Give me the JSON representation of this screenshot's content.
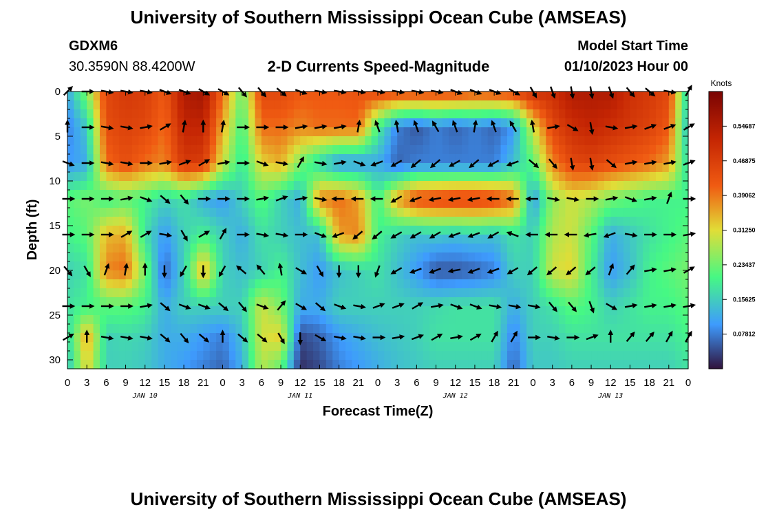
{
  "header": {
    "title": "University of Southern Mississippi Ocean Cube (AMSEAS)",
    "station": "GDXM6",
    "coords": "30.3590N  88.4200W",
    "plot_title": "2-D Currents Speed-Magnitude",
    "model_start_label": "Model Start Time",
    "model_start_value": "01/10/2023 Hour 00"
  },
  "footer": {
    "title": "University of Southern Mississippi Ocean Cube (AMSEAS)"
  },
  "colors": [
    "#30123b",
    "#3e9bfe",
    "#46f884",
    "#e1dd37",
    "#f05b12",
    "#c42503",
    "#7a0403"
  ],
  "chart_data": {
    "type": "heatmap",
    "title": "2-D Currents Speed-Magnitude",
    "xlabel": "Forecast Time(Z)",
    "ylabel": "Depth (ft)",
    "x_hours": [
      0,
      96
    ],
    "x_tick_labels": [
      "0",
      "3",
      "6",
      "9",
      "12",
      "15",
      "18",
      "21",
      "0",
      "3",
      "6",
      "9",
      "12",
      "15",
      "18",
      "21",
      "0",
      "3",
      "6",
      "9",
      "12",
      "15",
      "18",
      "21",
      "0",
      "3",
      "6",
      "9",
      "12",
      "15",
      "18",
      "21",
      "0"
    ],
    "day_labels": [
      {
        "label": "JAN 10",
        "hour": 12
      },
      {
        "label": "JAN 11",
        "hour": 36
      },
      {
        "label": "JAN 12",
        "hour": 60
      },
      {
        "label": "JAN 13",
        "hour": 84
      }
    ],
    "y_ticks": [
      0,
      5,
      10,
      15,
      20,
      25,
      30
    ],
    "ylim": [
      0,
      31
    ],
    "colorbar": {
      "unit": "Knots",
      "ticks": [
        "0.54687",
        "0.46875",
        "0.39062",
        "0.31250",
        "0.23437",
        "0.15625",
        "0.07812"
      ],
      "tick_values": [
        0.54687,
        0.46875,
        0.39062,
        0.3125,
        0.23437,
        0.15625,
        0.07812
      ],
      "range": [
        0.0,
        0.625
      ]
    },
    "depths_ft": [
      0,
      4,
      8,
      12,
      16,
      20,
      24,
      27.5,
      31
    ],
    "times_h": [
      0,
      3,
      6,
      9,
      12,
      15,
      18,
      21,
      24,
      27,
      30,
      33,
      36,
      39,
      42,
      45,
      48,
      51,
      54,
      57,
      60,
      63,
      66,
      69,
      72,
      75,
      78,
      81,
      84,
      87,
      90,
      93,
      96
    ],
    "speed_knots": [
      [
        0.12,
        0.25,
        0.45,
        0.48,
        0.47,
        0.42,
        0.55,
        0.57,
        0.4,
        0.23,
        0.45,
        0.45,
        0.42,
        0.42,
        0.42,
        0.43,
        0.45,
        0.45,
        0.45,
        0.45,
        0.45,
        0.43,
        0.44,
        0.45,
        0.5,
        0.5,
        0.55,
        0.55,
        0.55,
        0.5,
        0.48,
        0.45,
        0.15
      ],
      [
        0.08,
        0.15,
        0.44,
        0.46,
        0.45,
        0.4,
        0.52,
        0.52,
        0.35,
        0.2,
        0.4,
        0.4,
        0.38,
        0.4,
        0.4,
        0.4,
        0.2,
        0.08,
        0.05,
        0.08,
        0.06,
        0.08,
        0.06,
        0.1,
        0.3,
        0.45,
        0.5,
        0.52,
        0.5,
        0.48,
        0.46,
        0.42,
        0.12
      ],
      [
        0.1,
        0.12,
        0.4,
        0.44,
        0.4,
        0.38,
        0.48,
        0.47,
        0.3,
        0.18,
        0.32,
        0.35,
        0.24,
        0.16,
        0.1,
        0.1,
        0.12,
        0.06,
        0.08,
        0.08,
        0.08,
        0.08,
        0.08,
        0.14,
        0.22,
        0.38,
        0.45,
        0.46,
        0.44,
        0.42,
        0.4,
        0.36,
        0.16
      ],
      [
        0.22,
        0.24,
        0.2,
        0.22,
        0.2,
        0.16,
        0.18,
        0.12,
        0.1,
        0.16,
        0.22,
        0.16,
        0.12,
        0.38,
        0.4,
        0.36,
        0.2,
        0.36,
        0.44,
        0.45,
        0.46,
        0.46,
        0.45,
        0.4,
        0.1,
        0.26,
        0.3,
        0.28,
        0.24,
        0.22,
        0.2,
        0.2,
        0.2
      ],
      [
        0.2,
        0.22,
        0.34,
        0.35,
        0.18,
        0.1,
        0.16,
        0.2,
        0.16,
        0.12,
        0.18,
        0.16,
        0.14,
        0.14,
        0.36,
        0.38,
        0.2,
        0.16,
        0.14,
        0.15,
        0.14,
        0.15,
        0.14,
        0.18,
        0.16,
        0.28,
        0.3,
        0.22,
        0.12,
        0.15,
        0.18,
        0.2,
        0.22
      ],
      [
        0.16,
        0.18,
        0.38,
        0.4,
        0.24,
        0.06,
        0.16,
        0.36,
        0.16,
        0.14,
        0.16,
        0.2,
        0.14,
        0.1,
        0.14,
        0.16,
        0.18,
        0.14,
        0.1,
        0.05,
        0.05,
        0.06,
        0.08,
        0.16,
        0.16,
        0.3,
        0.32,
        0.2,
        0.1,
        0.14,
        0.2,
        0.22,
        0.24
      ],
      [
        0.18,
        0.2,
        0.22,
        0.22,
        0.2,
        0.12,
        0.16,
        0.16,
        0.16,
        0.16,
        0.3,
        0.24,
        0.12,
        0.12,
        0.16,
        0.16,
        0.16,
        0.16,
        0.16,
        0.17,
        0.18,
        0.18,
        0.18,
        0.12,
        0.16,
        0.18,
        0.22,
        0.2,
        0.16,
        0.18,
        0.2,
        0.2,
        0.22
      ],
      [
        0.16,
        0.36,
        0.16,
        0.17,
        0.16,
        0.12,
        0.12,
        0.1,
        0.08,
        0.14,
        0.3,
        0.32,
        0.04,
        0.06,
        0.1,
        0.12,
        0.14,
        0.15,
        0.16,
        0.18,
        0.18,
        0.18,
        0.18,
        0.08,
        0.16,
        0.16,
        0.18,
        0.18,
        0.18,
        0.18,
        0.18,
        0.18,
        0.2
      ],
      [
        0.14,
        0.32,
        0.16,
        0.16,
        0.15,
        0.12,
        0.1,
        0.08,
        0.06,
        0.12,
        0.28,
        0.22,
        0.02,
        0.04,
        0.08,
        0.1,
        0.12,
        0.14,
        0.15,
        0.16,
        0.16,
        0.16,
        0.16,
        0.06,
        0.15,
        0.15,
        0.16,
        0.16,
        0.16,
        0.16,
        0.16,
        0.16,
        0.18
      ]
    ],
    "vectors": {
      "depths_ft": [
        0,
        4,
        8,
        12,
        16,
        20,
        24,
        27.5
      ],
      "times_h": [
        0,
        3,
        6,
        9,
        12,
        15,
        18,
        21,
        24,
        27,
        30,
        33,
        36,
        39,
        42,
        45,
        48,
        51,
        54,
        57,
        60,
        63,
        66,
        69,
        72,
        75,
        78,
        81,
        84,
        87,
        90,
        93,
        96
      ],
      "direction_deg": [
        [
          45,
          90,
          100,
          100,
          100,
          110,
          110,
          120,
          120,
          140,
          140,
          130,
          110,
          100,
          100,
          100,
          100,
          100,
          100,
          100,
          110,
          110,
          110,
          120,
          150,
          160,
          170,
          170,
          160,
          140,
          130,
          100,
          30
        ],
        [
          0,
          90,
          100,
          100,
          80,
          60,
          10,
          0,
          10,
          90,
          90,
          90,
          80,
          80,
          80,
          10,
          340,
          350,
          340,
          330,
          340,
          10,
          340,
          330,
          350,
          80,
          120,
          170,
          100,
          80,
          70,
          70,
          60
        ],
        [
          110,
          90,
          100,
          100,
          90,
          80,
          70,
          60,
          80,
          90,
          110,
          100,
          30,
          100,
          80,
          110,
          250,
          240,
          230,
          230,
          240,
          230,
          240,
          250,
          130,
          140,
          170,
          170,
          130,
          80,
          80,
          80,
          70
        ],
        [
          90,
          90,
          90,
          80,
          110,
          130,
          140,
          90,
          90,
          90,
          80,
          70,
          80,
          100,
          270,
          270,
          270,
          240,
          250,
          260,
          260,
          260,
          270,
          270,
          270,
          100,
          100,
          90,
          80,
          110,
          80,
          20,
          90
        ],
        [
          90,
          90,
          90,
          60,
          60,
          100,
          150,
          60,
          30,
          90,
          100,
          100,
          90,
          110,
          250,
          230,
          230,
          240,
          240,
          240,
          250,
          250,
          240,
          290,
          270,
          270,
          270,
          260,
          250,
          100,
          90,
          90,
          80
        ],
        [
          140,
          150,
          20,
          10,
          0,
          180,
          210,
          180,
          210,
          310,
          320,
          350,
          120,
          150,
          180,
          180,
          200,
          240,
          250,
          250,
          260,
          250,
          250,
          240,
          230,
          230,
          230,
          230,
          20,
          40,
          80,
          80,
          60
        ],
        [
          90,
          90,
          90,
          90,
          80,
          130,
          110,
          110,
          130,
          140,
          110,
          40,
          120,
          130,
          110,
          100,
          70,
          70,
          60,
          80,
          110,
          110,
          100,
          100,
          100,
          140,
          140,
          160,
          120,
          80,
          80,
          80,
          80
        ],
        [
          60,
          0,
          100,
          100,
          100,
          130,
          140,
          130,
          0,
          130,
          130,
          150,
          180,
          120,
          100,
          100,
          90,
          80,
          70,
          60,
          80,
          60,
          30,
          30,
          90,
          100,
          90,
          70,
          0,
          40,
          40,
          30,
          30
        ]
      ]
    }
  }
}
